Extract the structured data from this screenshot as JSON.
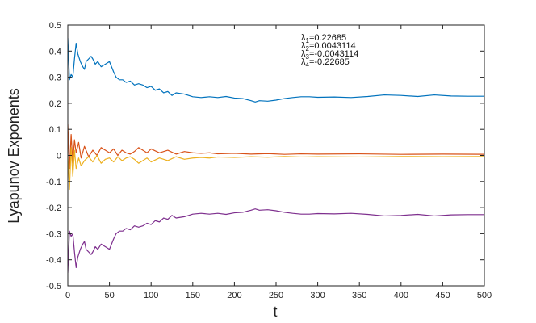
{
  "chart_data": {
    "type": "line",
    "title": "",
    "xlabel": "t",
    "ylabel": "Lyapunov Exponents",
    "xlim": [
      0,
      500
    ],
    "ylim": [
      -0.5,
      0.5
    ],
    "grid": false,
    "legend_position": "top-center",
    "x_ticks": [
      0,
      50,
      100,
      150,
      200,
      250,
      300,
      350,
      400,
      450,
      500
    ],
    "y_ticks": [
      0.5,
      0.4,
      0.3,
      0.2,
      0.1,
      0,
      -0.1,
      -0.2,
      -0.3,
      -0.4,
      -0.5
    ],
    "x_tick_labels": [
      "0",
      "50",
      "100",
      "150",
      "200",
      "250",
      "300",
      "350",
      "400",
      "450",
      "500"
    ],
    "y_tick_labels": [
      "0.5",
      "0.4",
      "0.3",
      "0.2",
      "0.1",
      "0",
      "-0.1",
      "-0.2",
      "-0.3",
      "-0.4",
      "-0.5"
    ],
    "annotations": [
      {
        "symbol": "λ",
        "sub": "1",
        "text": "=0.22685"
      },
      {
        "symbol": "λ",
        "sub": "2",
        "text": "=0.0043114"
      },
      {
        "symbol": "λ",
        "sub": "3",
        "text": "=-0.0043114"
      },
      {
        "symbol": "λ",
        "sub": "4",
        "text": "=-0.22685"
      }
    ],
    "series": [
      {
        "color": "#0072BD",
        "x": [
          0,
          2,
          4,
          6,
          8,
          10,
          12,
          15,
          18,
          20,
          22,
          25,
          28,
          30,
          33,
          36,
          40,
          45,
          50,
          55,
          58,
          62,
          66,
          70,
          75,
          80,
          85,
          90,
          95,
          100,
          105,
          110,
          115,
          120,
          125,
          130,
          140,
          150,
          160,
          170,
          180,
          190,
          200,
          210,
          220,
          225,
          230,
          240,
          250,
          260,
          270,
          280,
          290,
          300,
          320,
          340,
          360,
          380,
          400,
          420,
          440,
          460,
          480,
          500
        ],
        "y": [
          0.45,
          0.29,
          0.31,
          0.3,
          0.37,
          0.43,
          0.39,
          0.36,
          0.34,
          0.33,
          0.36,
          0.37,
          0.38,
          0.37,
          0.35,
          0.36,
          0.34,
          0.35,
          0.36,
          0.32,
          0.3,
          0.29,
          0.29,
          0.28,
          0.285,
          0.27,
          0.275,
          0.27,
          0.26,
          0.265,
          0.25,
          0.255,
          0.24,
          0.245,
          0.23,
          0.24,
          0.235,
          0.225,
          0.222,
          0.225,
          0.222,
          0.226,
          0.22,
          0.218,
          0.21,
          0.205,
          0.21,
          0.208,
          0.212,
          0.218,
          0.222,
          0.225,
          0.225,
          0.223,
          0.224,
          0.222,
          0.226,
          0.232,
          0.23,
          0.226,
          0.232,
          0.228,
          0.227,
          0.227
        ]
      },
      {
        "color": "#D95319",
        "x": [
          0,
          2,
          4,
          6,
          8,
          10,
          13,
          16,
          20,
          25,
          30,
          35,
          40,
          45,
          50,
          55,
          60,
          65,
          70,
          75,
          80,
          85,
          90,
          95,
          100,
          110,
          120,
          130,
          140,
          150,
          160,
          170,
          180,
          200,
          220,
          240,
          260,
          280,
          300,
          350,
          400,
          450,
          500
        ],
        "y": [
          0.12,
          -0.05,
          0.08,
          -0.03,
          0.06,
          0.01,
          0.05,
          -0.01,
          0.035,
          -0.005,
          0.02,
          0.0,
          0.03,
          0.02,
          0.01,
          0.025,
          0.0,
          0.02,
          0.01,
          0.005,
          0.015,
          0.03,
          0.02,
          0.01,
          0.025,
          0.01,
          0.02,
          0.005,
          0.015,
          0.01,
          0.008,
          0.01,
          0.006,
          0.008,
          0.005,
          0.007,
          0.004,
          0.006,
          0.005,
          0.006,
          0.004,
          0.005,
          0.0043
        ]
      },
      {
        "color": "#EDB120",
        "x": [
          0,
          2,
          4,
          6,
          8,
          10,
          13,
          16,
          20,
          25,
          30,
          35,
          40,
          45,
          50,
          55,
          60,
          65,
          70,
          75,
          80,
          85,
          90,
          95,
          100,
          110,
          120,
          130,
          140,
          150,
          160,
          170,
          180,
          200,
          220,
          240,
          260,
          280,
          300,
          350,
          400,
          450,
          500
        ],
        "y": [
          0.0,
          -0.13,
          0.03,
          -0.08,
          0.02,
          -0.05,
          -0.01,
          -0.04,
          -0.02,
          -0.005,
          -0.025,
          0.0,
          -0.03,
          -0.015,
          -0.01,
          -0.025,
          -0.005,
          -0.02,
          -0.01,
          -0.005,
          -0.015,
          -0.03,
          -0.02,
          -0.01,
          -0.025,
          -0.01,
          -0.02,
          -0.005,
          -0.015,
          -0.01,
          -0.008,
          -0.01,
          -0.006,
          -0.008,
          -0.005,
          -0.007,
          -0.004,
          -0.006,
          -0.005,
          -0.006,
          -0.004,
          -0.005,
          -0.0043
        ]
      },
      {
        "color": "#7E2F8E",
        "x": [
          0,
          2,
          4,
          6,
          8,
          10,
          12,
          15,
          18,
          20,
          22,
          25,
          28,
          30,
          33,
          36,
          40,
          45,
          50,
          55,
          58,
          62,
          66,
          70,
          75,
          80,
          85,
          90,
          95,
          100,
          105,
          110,
          115,
          120,
          125,
          130,
          140,
          150,
          160,
          170,
          180,
          190,
          200,
          210,
          220,
          225,
          230,
          240,
          250,
          260,
          270,
          280,
          290,
          300,
          320,
          340,
          360,
          380,
          400,
          420,
          440,
          460,
          480,
          500
        ],
        "y": [
          -0.45,
          -0.29,
          -0.31,
          -0.3,
          -0.37,
          -0.43,
          -0.39,
          -0.36,
          -0.34,
          -0.33,
          -0.36,
          -0.37,
          -0.38,
          -0.37,
          -0.35,
          -0.36,
          -0.34,
          -0.35,
          -0.36,
          -0.32,
          -0.3,
          -0.29,
          -0.29,
          -0.28,
          -0.285,
          -0.27,
          -0.275,
          -0.27,
          -0.26,
          -0.265,
          -0.25,
          -0.255,
          -0.24,
          -0.245,
          -0.23,
          -0.24,
          -0.235,
          -0.225,
          -0.222,
          -0.225,
          -0.222,
          -0.226,
          -0.22,
          -0.218,
          -0.21,
          -0.205,
          -0.21,
          -0.208,
          -0.212,
          -0.218,
          -0.222,
          -0.225,
          -0.225,
          -0.223,
          -0.224,
          -0.222,
          -0.226,
          -0.232,
          -0.23,
          -0.226,
          -0.232,
          -0.228,
          -0.227,
          -0.227
        ]
      }
    ]
  }
}
